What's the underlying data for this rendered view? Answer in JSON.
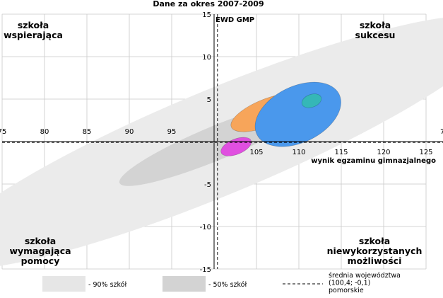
{
  "chart_data": {
    "type": "scatter",
    "title": "Dane za okres 2007-2009",
    "xlabel": "wynik egzaminu gimnazjalnego",
    "ylabel": "EWD GMP",
    "xlim": [
      75,
      125
    ],
    "ylim": [
      -15,
      15
    ],
    "x_ticks": [
      75,
      80,
      85,
      90,
      95,
      100,
      105,
      110,
      115,
      120,
      125
    ],
    "y_ticks": [
      -15,
      -10,
      -5,
      0,
      5,
      10,
      15
    ],
    "x_tick_labels_top": [
      "75",
      "80",
      "85",
      "90",
      "95"
    ],
    "x_tick_labels_bottom": [
      "105",
      "110",
      "115",
      "120",
      "125"
    ],
    "y_tick_labels": [
      "15",
      "10",
      "5",
      "-5",
      "-10",
      "-15"
    ],
    "x_tick_label_right_edge": "7",
    "grid": true,
    "reference": {
      "x": 100.4,
      "y": -0.1
    },
    "quadrants": {
      "top_left": [
        "szkoła",
        "wspierająca"
      ],
      "top_right": [
        "szkoła",
        "sukcesu"
      ],
      "bottom_left": [
        "szkoła",
        "wymagająca",
        "pomocy"
      ],
      "bottom_right": [
        "szkoła",
        "niewykorzystanych",
        "możliwości"
      ]
    },
    "regions": [
      {
        "label": "90% szkół",
        "cx": 100.4,
        "cy": -0.1,
        "rx": 36,
        "ry": 6.2,
        "angle_deg": -22.5,
        "color": "#ebebeb"
      },
      {
        "label": "50% szkół",
        "cx": 100.4,
        "cy": -0.1,
        "rx": 12.5,
        "ry": 2.0,
        "angle_deg": -22.5,
        "color": "#d3d3d3"
      }
    ],
    "ellipses": [
      {
        "cx": 106.2,
        "cy": 3.4,
        "rx": 4.5,
        "ry": 1.6,
        "angle_deg": -22,
        "color": "#f7a55a"
      },
      {
        "cx": 109.9,
        "cy": 3.2,
        "rx": 5.4,
        "ry": 3.3,
        "angle_deg": -26,
        "color": "#4a98ec"
      },
      {
        "cx": 111.5,
        "cy": 4.8,
        "rx": 1.2,
        "ry": 0.75,
        "angle_deg": -20,
        "color": "#35b7b7"
      },
      {
        "cx": 102.6,
        "cy": -0.6,
        "rx": 1.9,
        "ry": 0.9,
        "angle_deg": -22,
        "color": "#e04fe0"
      }
    ],
    "legend": {
      "placement": "bottom",
      "items": [
        {
          "kind": "swatch",
          "label": "- 90% szkół",
          "color": "#e6e6e6"
        },
        {
          "kind": "swatch",
          "label": "- 50% szkół",
          "color": "#d3d3d3"
        },
        {
          "kind": "line",
          "label_lines": [
            "średnia województwa",
            "(100,4; -0,1)",
            "pomorskie"
          ]
        }
      ]
    }
  }
}
